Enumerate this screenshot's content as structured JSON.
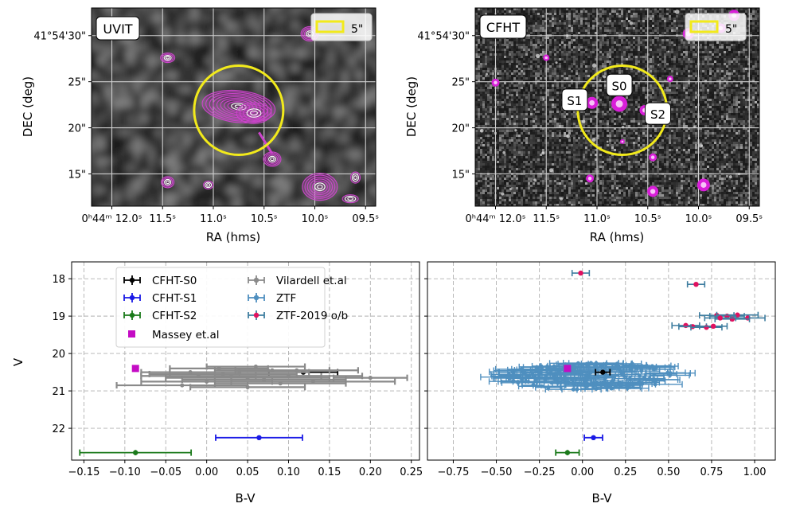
{
  "figure": {
    "colors": {
      "contour": "#cc44cc",
      "aperture": "#f2ea1b",
      "grid_img": "#cfcfcf",
      "grid_plot": "#b0b0b0",
      "s0": "#000000",
      "s1": "#1a1ae6",
      "s2": "#1b7a1b",
      "massey": "#c40cc4",
      "vilardell": "#8a8a8a",
      "ztf": "#4f8fbf",
      "ztf2019_point": "#e0115f",
      "ztf2019_err": "#3f7ea0"
    }
  },
  "image_panels": [
    {
      "panel_name": "UVIT",
      "label": "UVIT",
      "scale_label": "5\"",
      "xlabel": "RA (hms)",
      "ylabel": "DEC (deg)",
      "xticks": [
        {
          "value": 12.0,
          "label": "0ʰ44ᵐ 12.0ˢ"
        },
        {
          "value": 11.5,
          "label": "11.5ˢ"
        },
        {
          "value": 11.0,
          "label": "11.0ˢ"
        },
        {
          "value": 10.5,
          "label": "10.5ˢ"
        },
        {
          "value": 10.0,
          "label": "10.0ˢ"
        },
        {
          "value": 9.5,
          "label": "09.5ˢ"
        }
      ],
      "yticks": [
        {
          "value": 30,
          "label": "41°54'30\""
        },
        {
          "value": 25,
          "label": "25\""
        },
        {
          "value": 20,
          "label": "20\""
        },
        {
          "value": 15,
          "label": "15\""
        }
      ],
      "ra_range": [
        12.2,
        9.4
      ],
      "dec_range": [
        11.5,
        33.0
      ],
      "source_labels": []
    },
    {
      "panel_name": "CFHT",
      "label": "CFHT",
      "scale_label": "5\"",
      "xlabel": "RA (hms)",
      "ylabel": "DEC (deg)",
      "xticks": [
        {
          "value": 12.0,
          "label": "0ʰ44ᵐ 12.0ˢ"
        },
        {
          "value": 11.5,
          "label": "11.5ˢ"
        },
        {
          "value": 11.0,
          "label": "11.0ˢ"
        },
        {
          "value": 10.5,
          "label": "10.5ˢ"
        },
        {
          "value": 10.0,
          "label": "10.0ˢ"
        },
        {
          "value": 9.5,
          "label": "09.5ˢ"
        }
      ],
      "yticks": [
        {
          "value": 30,
          "label": "41°54'30\""
        },
        {
          "value": 25,
          "label": "25\""
        },
        {
          "value": 20,
          "label": "20\""
        },
        {
          "value": 15,
          "label": "15\""
        }
      ],
      "ra_range": [
        12.2,
        9.4
      ],
      "dec_range": [
        11.5,
        33.0
      ],
      "source_labels": [
        {
          "text": "S0",
          "ra": 10.78,
          "dec": 24.6
        },
        {
          "text": "S1",
          "ra": 11.22,
          "dec": 23.0
        },
        {
          "text": "S2",
          "ra": 10.4,
          "dec": 21.5
        }
      ]
    }
  ],
  "chart_data": [
    {
      "type": "scatter",
      "name": "cmd-left",
      "xlabel": "B-V",
      "ylabel": "V",
      "xlim": [
        -0.165,
        0.26
      ],
      "ylim": [
        22.85,
        17.55
      ],
      "y_inverted": true,
      "xticks": [
        -0.15,
        -0.1,
        -0.05,
        0.0,
        0.05,
        0.1,
        0.15,
        0.2,
        0.25
      ],
      "xtick_labels": [
        "−0.15",
        "−0.10",
        "−0.05",
        "0.00",
        "0.05",
        "0.10",
        "0.15",
        "0.20",
        "0.25"
      ],
      "yticks": [
        18,
        19,
        20,
        21,
        22
      ],
      "ytick_labels": [
        "18",
        "19",
        "20",
        "21",
        "22"
      ],
      "grid": true,
      "legend_position": "top",
      "legend": [
        {
          "label": "CFHT-S0",
          "key": "s0",
          "marker": "errorbar"
        },
        {
          "label": "Vilardell et.al",
          "key": "vilardell",
          "marker": "errorbar"
        },
        {
          "label": "CFHT-S1",
          "key": "s1",
          "marker": "errorbar"
        },
        {
          "label": "ZTF",
          "key": "ztf",
          "marker": "errorbar"
        },
        {
          "label": "CFHT-S2",
          "key": "s2",
          "marker": "errorbar"
        },
        {
          "label": "ZTF-2019 o/b",
          "key": "ztf2019",
          "marker": "errorbar"
        },
        {
          "label": "Massey et.al",
          "key": "massey",
          "marker": "square"
        }
      ],
      "series": [
        {
          "name": "CFHT-S0",
          "key": "s0",
          "points": [
            {
              "x": 0.118,
              "y": 20.5,
              "xerr": 0.042,
              "yerr": 0.06
            }
          ]
        },
        {
          "name": "CFHT-S1",
          "key": "s1",
          "points": [
            {
              "x": 0.064,
              "y": 22.25,
              "xerr": 0.053,
              "yerr": 0.06
            }
          ]
        },
        {
          "name": "CFHT-S2",
          "key": "s2",
          "points": [
            {
              "x": -0.087,
              "y": 22.65,
              "xerr": 0.068,
              "yerr": 0.07
            }
          ]
        },
        {
          "name": "Massey et.al",
          "key": "massey",
          "points": [
            {
              "x": -0.087,
              "y": 20.4
            }
          ]
        },
        {
          "name": "Vilardell et.al",
          "key": "vilardell",
          "points": [
            {
              "x": 0.02,
              "y": 20.55,
              "xerr": 0.09,
              "yerr": 0.05
            },
            {
              "x": 0.05,
              "y": 20.65,
              "xerr": 0.1,
              "yerr": 0.05
            },
            {
              "x": 0.0,
              "y": 20.75,
              "xerr": 0.08,
              "yerr": 0.05
            },
            {
              "x": 0.08,
              "y": 20.45,
              "xerr": 0.07,
              "yerr": 0.05
            },
            {
              "x": 0.03,
              "y": 20.6,
              "xerr": 0.11,
              "yerr": 0.05
            },
            {
              "x": -0.03,
              "y": 20.85,
              "xerr": 0.08,
              "yerr": 0.05
            },
            {
              "x": 0.06,
              "y": 20.35,
              "xerr": 0.06,
              "yerr": 0.05
            },
            {
              "x": 0.1,
              "y": 20.6,
              "xerr": 0.09,
              "yerr": 0.05
            },
            {
              "x": 0.13,
              "y": 20.75,
              "xerr": 0.1,
              "yerr": 0.05
            },
            {
              "x": 0.2,
              "y": 20.65,
              "xerr": 0.045,
              "yerr": 0.05
            },
            {
              "x": 0.04,
              "y": 20.5,
              "xerr": 0.085,
              "yerr": 0.05
            },
            {
              "x": -0.01,
              "y": 20.6,
              "xerr": 0.07,
              "yerr": 0.05
            },
            {
              "x": 0.09,
              "y": 20.8,
              "xerr": 0.08,
              "yerr": 0.05
            },
            {
              "x": 0.07,
              "y": 20.7,
              "xerr": 0.1,
              "yerr": 0.05
            },
            {
              "x": 0.015,
              "y": 20.4,
              "xerr": 0.06,
              "yerr": 0.05
            },
            {
              "x": 0.11,
              "y": 20.45,
              "xerr": 0.075,
              "yerr": 0.05
            },
            {
              "x": 0.05,
              "y": 20.9,
              "xerr": 0.07,
              "yerr": 0.05
            },
            {
              "x": -0.02,
              "y": 20.5,
              "xerr": 0.06,
              "yerr": 0.05
            }
          ]
        }
      ]
    },
    {
      "type": "scatter",
      "name": "cmd-right",
      "xlabel": "B-V",
      "ylabel": "",
      "xlim": [
        -0.9,
        1.12
      ],
      "ylim": [
        22.85,
        17.55
      ],
      "y_inverted": true,
      "xticks": [
        -0.75,
        -0.5,
        -0.25,
        0.0,
        0.25,
        0.5,
        0.75,
        1.0
      ],
      "xtick_labels": [
        "−0.75",
        "−0.50",
        "−0.25",
        "0.00",
        "0.25",
        "0.50",
        "0.75",
        "1.00"
      ],
      "yticks": [
        18,
        19,
        20,
        21,
        22
      ],
      "grid": true,
      "series": [
        {
          "name": "ZTF",
          "key": "ztf",
          "cloud": {
            "cx": 0.05,
            "cy": 20.6,
            "rx": 0.5,
            "ry": 0.38,
            "count": 150,
            "xerr_range": [
              0.05,
              0.18
            ],
            "yerr_range": [
              0.04,
              0.1
            ]
          }
        },
        {
          "name": "ZTF-2019 o/b",
          "key": "ztf2019",
          "points": [
            {
              "x": -0.01,
              "y": 17.85,
              "xerr": 0.05,
              "yerr": 0.04
            },
            {
              "x": 0.66,
              "y": 18.15,
              "xerr": 0.05,
              "yerr": 0.04
            },
            {
              "x": 0.78,
              "y": 18.98,
              "xerr": 0.1,
              "yerr": 0.05
            },
            {
              "x": 0.84,
              "y": 19.0,
              "xerr": 0.1,
              "yerr": 0.05
            },
            {
              "x": 0.9,
              "y": 18.97,
              "xerr": 0.12,
              "yerr": 0.05
            },
            {
              "x": 0.96,
              "y": 19.05,
              "xerr": 0.1,
              "yerr": 0.05
            },
            {
              "x": 0.87,
              "y": 19.08,
              "xerr": 0.1,
              "yerr": 0.05
            },
            {
              "x": 0.8,
              "y": 19.05,
              "xerr": 0.09,
              "yerr": 0.05
            },
            {
              "x": 0.6,
              "y": 19.25,
              "xerr": 0.08,
              "yerr": 0.05
            },
            {
              "x": 0.64,
              "y": 19.28,
              "xerr": 0.08,
              "yerr": 0.05
            },
            {
              "x": 0.72,
              "y": 19.3,
              "xerr": 0.09,
              "yerr": 0.05
            },
            {
              "x": 0.76,
              "y": 19.27,
              "xerr": 0.08,
              "yerr": 0.05
            }
          ]
        },
        {
          "name": "CFHT-S0",
          "key": "s0",
          "points": [
            {
              "x": 0.118,
              "y": 20.5,
              "xerr": 0.042,
              "yerr": 0.06
            }
          ]
        },
        {
          "name": "CFHT-S1",
          "key": "s1",
          "points": [
            {
              "x": 0.064,
              "y": 22.25,
              "xerr": 0.053,
              "yerr": 0.06
            }
          ]
        },
        {
          "name": "CFHT-S2",
          "key": "s2",
          "points": [
            {
              "x": -0.087,
              "y": 22.65,
              "xerr": 0.068,
              "yerr": 0.07
            }
          ]
        },
        {
          "name": "Massey et.al",
          "key": "massey",
          "points": [
            {
              "x": -0.087,
              "y": 20.4
            }
          ]
        }
      ]
    }
  ]
}
